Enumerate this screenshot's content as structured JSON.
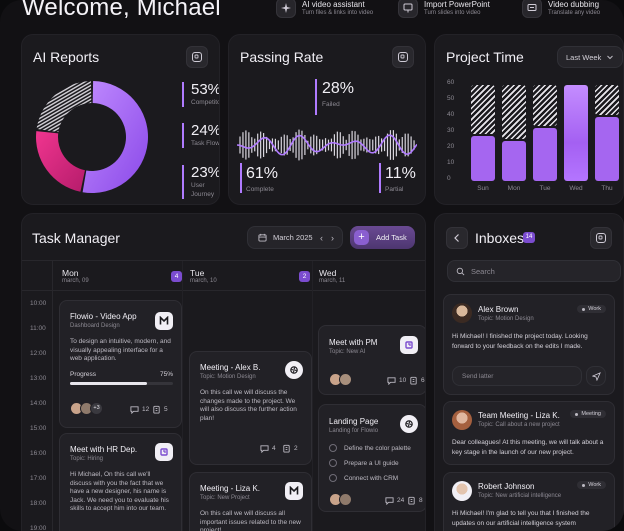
{
  "header": {
    "welcome": "Welcome, Michael",
    "tiles": [
      {
        "title": "AI video assistant",
        "subtitle": "Turn files & links into video",
        "icon": "sparkle-icon"
      },
      {
        "title": "Import PowerPoint",
        "subtitle": "Turn slides into video",
        "icon": "presentation-icon"
      },
      {
        "title": "Video dubbing",
        "subtitle": "Translate any video",
        "icon": "translate-icon"
      }
    ]
  },
  "ai_reports": {
    "title": "AI Reports",
    "stats": [
      {
        "value": "53%",
        "label": "Competitors"
      },
      {
        "value": "24%",
        "label": "Task Flow"
      },
      {
        "value": "23%",
        "label": "User Journey"
      }
    ],
    "donut": {
      "segments": [
        53,
        24,
        23
      ],
      "colors": [
        "#a064f5",
        "#e0287f",
        "#cfcfd3"
      ]
    }
  },
  "passing_rate": {
    "title": "Passing Rate",
    "stats": [
      {
        "value": "28%",
        "label": "Failed"
      },
      {
        "value": "61%",
        "label": "Complete"
      },
      {
        "value": "11%",
        "label": "Partial"
      }
    ]
  },
  "project_time": {
    "title": "Project Time",
    "filter": "Last Week",
    "chart_data": {
      "type": "bar",
      "categories": [
        "Sun",
        "Mon",
        "Tue",
        "Wed",
        "Thu"
      ],
      "values": [
        28,
        25,
        33,
        60,
        40
      ],
      "remainder": [
        32,
        35,
        27,
        0,
        20
      ],
      "yticks": [
        "60",
        "50",
        "40",
        "30",
        "20",
        "10",
        "0"
      ],
      "ylim": [
        0,
        60
      ],
      "highlight": "Wed"
    }
  },
  "task_manager": {
    "title": "Task Manager",
    "date": "March 2025",
    "add_label": "Add Task",
    "days": [
      {
        "day": "Mon",
        "date": "march, 09",
        "count": "4"
      },
      {
        "day": "Tue",
        "date": "march, 10",
        "count": "2"
      },
      {
        "day": "Wed",
        "date": "march, 11",
        "count": ""
      }
    ],
    "times": [
      "10:00",
      "11:00",
      "12:00",
      "13:00",
      "14:00",
      "15:00",
      "16:00",
      "17:00",
      "18:00",
      "19:00"
    ],
    "tasks": {
      "flowio": {
        "title": "Flowio - Video App",
        "topic": "Dashboard Design",
        "body": "To design an intuitive, modern, and visually appealing interface for a web application.",
        "progress_label": "Progress",
        "progress_value": "75%",
        "progress": 0.75,
        "extra": "+3",
        "comments": "12",
        "files": "5"
      },
      "hr": {
        "title": "Meet with HR Dep.",
        "topic": "Topic: Hiring",
        "body": "Hi Michael, On this call we'll discuss with you the fact that we have a new designer, his name is Jack. We need you to evaluate his skills to accept him into our team."
      },
      "liza_b": {
        "title": "Meeting - Alex B.",
        "topic": "Topic: Motion Design",
        "body": "On this call we will discuss the changes made to the project. We will also discuss the further action plan!",
        "comments": "4",
        "files": "2"
      },
      "liza_k": {
        "title": "Meeting - Liza K.",
        "topic": "Topic: New Project",
        "body": "On this call we will discuss all important issues related to the new project!"
      },
      "pm": {
        "title": "Meet with PM",
        "topic": "Topic: New AI",
        "comments": "10",
        "files": "6"
      },
      "landing": {
        "title": "Landing Page",
        "topic": "Landing for Flowio",
        "checklist": [
          "Define the color palette",
          "Prepare a UI guide",
          "Connect with CRM"
        ],
        "comments": "24",
        "files": "8"
      }
    }
  },
  "inboxes": {
    "title": "Inboxes",
    "count": "14",
    "search_placeholder": "Search",
    "reply_placeholder": "Send latter",
    "messages": [
      {
        "name": "Alex Brown",
        "topic": "Topic: Motion Design",
        "tag": "Work",
        "body": "Hi Michael! I finished the project today. Looking forward to your feedback on the edits I made."
      },
      {
        "name": "Team Meeting - Liza K.",
        "topic": "Topic: Call about a new project",
        "tag": "Meeting",
        "body": "Dear colleagues! At this meeting, we will talk about a key stage in the launch of our new project."
      },
      {
        "name": "Robert Johnson",
        "topic": "Topic: New artificial intelligence",
        "tag": "Work",
        "body": "Hi Michael! I'm glad to tell you that I finished the updates on our artificial intelligence system"
      }
    ]
  }
}
